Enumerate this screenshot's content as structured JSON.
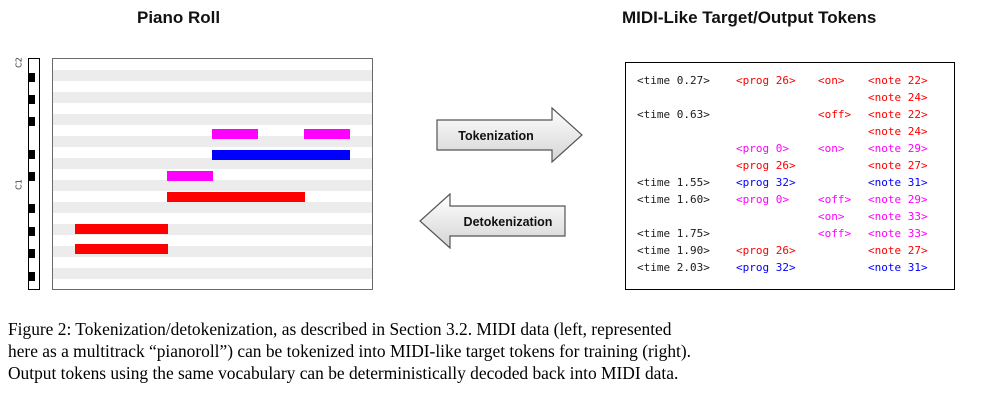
{
  "left_panel": {
    "title": "Piano Roll",
    "octave_labels": [
      "C2",
      "C1"
    ]
  },
  "right_panel": {
    "title": "MIDI-Like Target/Output Tokens"
  },
  "arrows": {
    "tokenization": "Tokenization",
    "detokenization": "Detokenization"
  },
  "colors": {
    "red": "#ff0000",
    "magenta": "#ff00ff",
    "blue": "#0000ff"
  },
  "tokens": {
    "rows": [
      [
        "<time 0.27>",
        "<prog 26>",
        "<on>",
        "<note 22>"
      ],
      [
        "",
        "",
        "",
        "<note 24>"
      ],
      [
        "<time 0.63>",
        "",
        "<off>",
        "<note 22>"
      ],
      [
        "",
        "",
        "",
        "<note 24>"
      ],
      [
        "",
        "<prog 0>",
        "<on>",
        "<note 29>"
      ],
      [
        "",
        "<prog 26>",
        "",
        "<note 27>"
      ],
      [
        "<time 1.55>",
        "<prog 32>",
        "",
        "<note 31>"
      ],
      [
        "<time 1.60>",
        "<prog 0>",
        "<off>",
        "<note 29>"
      ],
      [
        "",
        "",
        "<on>",
        "<note 33>"
      ],
      [
        "<time 1.75>",
        "",
        "<off>",
        "<note 33>"
      ],
      [
        "<time 1.90>",
        "<prog 26>",
        "",
        "<note 27>"
      ],
      [
        "<time 2.03>",
        "<prog 32>",
        "",
        "<note 31>"
      ]
    ]
  },
  "caption": {
    "line1": "Figure 2: Tokenization/detokenization, as described in Section 3.2.  MIDI data (left, represented",
    "line2": "here as a multitrack “pianoroll”) can be tokenized into MIDI-like target tokens for training (right).",
    "line3": "Output tokens using the same vocabulary can be deterministically decoded back into MIDI data."
  }
}
